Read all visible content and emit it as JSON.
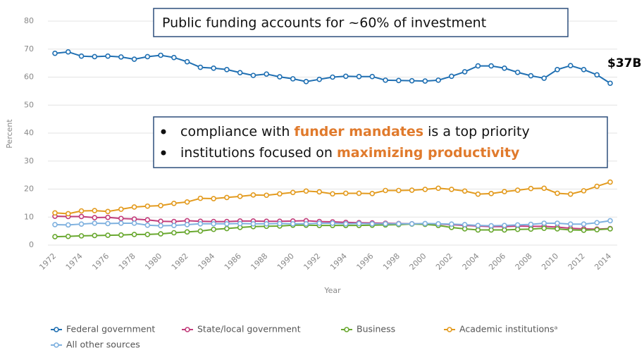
{
  "chart_data": {
    "type": "line",
    "x_label": "Year",
    "y_label": "Percent",
    "categories": [
      "1972",
      null,
      "1974",
      null,
      "1976",
      null,
      "1978",
      null,
      "1980",
      null,
      "1982",
      null,
      "1984",
      null,
      "1986",
      null,
      "1988",
      null,
      "1990",
      null,
      "1992",
      null,
      "1994",
      null,
      "1996",
      null,
      "1998",
      null,
      "2000",
      null,
      "2002",
      null,
      "2004",
      null,
      "2006",
      null,
      "2008",
      null,
      "2010",
      null,
      "2012",
      null,
      "2014"
    ],
    "ylim": [
      0,
      80
    ],
    "yticks": [
      0,
      10,
      20,
      30,
      40,
      50,
      60,
      70,
      80
    ],
    "grid": true,
    "legend": "bottom",
    "series": [
      {
        "name": "Federal government",
        "color": "#1f6fb2",
        "values": [
          68.5,
          69,
          67.5,
          67.3,
          67.5,
          67.2,
          66.4,
          67.3,
          67.8,
          67,
          65.5,
          63.5,
          63.2,
          62.7,
          61.6,
          60.6,
          61.1,
          60.1,
          59.4,
          58.4,
          59.2,
          60,
          60.3,
          60.2,
          60.2,
          58.9,
          58.8,
          58.7,
          58.6,
          58.9,
          60.3,
          61.9,
          64,
          64,
          63.2,
          61.7,
          60.5,
          59.6,
          62.7,
          64.1,
          62.7,
          60.8,
          57.8
        ]
      },
      {
        "name": "State/local government",
        "color": "#c23d7b",
        "values": [
          10.3,
          10.2,
          10.2,
          9.8,
          9.9,
          9.5,
          9.3,
          9,
          8.5,
          8.4,
          8.7,
          8.5,
          8.4,
          8.4,
          8.6,
          8.6,
          8.5,
          8.5,
          8.6,
          8.7,
          8.4,
          8.3,
          8.1,
          8,
          7.9,
          7.8,
          7.7,
          7.6,
          7.5,
          7.5,
          7.3,
          7,
          6.8,
          6.6,
          6.6,
          6.8,
          6.7,
          6.7,
          6.4,
          6,
          5.8,
          5.7,
          5.9
        ]
      },
      {
        "name": "Business",
        "color": "#69a82f",
        "values": [
          3,
          3.1,
          3.3,
          3.4,
          3.5,
          3.6,
          3.8,
          3.8,
          4,
          4.4,
          4.7,
          5,
          5.6,
          5.9,
          6.3,
          6.6,
          6.7,
          6.8,
          7.1,
          7.1,
          7,
          7,
          7,
          7,
          7.1,
          7.2,
          7.3,
          7.5,
          7.4,
          7,
          6.3,
          5.8,
          5.4,
          5.4,
          5.4,
          5.6,
          5.7,
          6,
          5.8,
          5.4,
          5.3,
          5.5,
          5.8
        ]
      },
      {
        "name": "Academic institutionsᵃ",
        "color": "#e39b1f",
        "values": [
          11.5,
          11.2,
          12.2,
          12.3,
          12,
          12.8,
          13.6,
          13.9,
          14.1,
          14.9,
          15.4,
          16.7,
          16.6,
          17,
          17.4,
          17.9,
          17.8,
          18.3,
          18.8,
          19.3,
          19,
          18.3,
          18.5,
          18.5,
          18.4,
          19.5,
          19.5,
          19.6,
          19.9,
          20.3,
          19.9,
          19.3,
          18.2,
          18.4,
          19.1,
          19.6,
          20.2,
          20.3,
          18.5,
          18.2,
          19.4,
          21,
          22.5
        ]
      },
      {
        "name": "All other sources",
        "color": "#7fb1df",
        "values": [
          7.3,
          7.2,
          7.5,
          7.8,
          7.7,
          7.8,
          7.8,
          7.1,
          6.9,
          7,
          7.3,
          7.6,
          7.6,
          7.6,
          7.7,
          7.6,
          7.6,
          7.7,
          7.6,
          7.6,
          7.8,
          7.8,
          7.6,
          7.7,
          7.6,
          7.6,
          7.6,
          7.6,
          7.7,
          7.6,
          7.5,
          7.3,
          7,
          6.9,
          7,
          7.2,
          7.4,
          7.8,
          7.8,
          7.5,
          7.5,
          8,
          8.7
        ]
      }
    ],
    "annotations": {
      "headline": "Public funding accounts for ~60% of investment",
      "end_label": "$37B",
      "bullets": [
        {
          "before": "compliance with ",
          "emphasis": "funder mandates",
          "after": " is a top priority"
        },
        {
          "before": "institutions focused on ",
          "emphasis": "maximizing productivity",
          "after": ""
        }
      ]
    }
  }
}
